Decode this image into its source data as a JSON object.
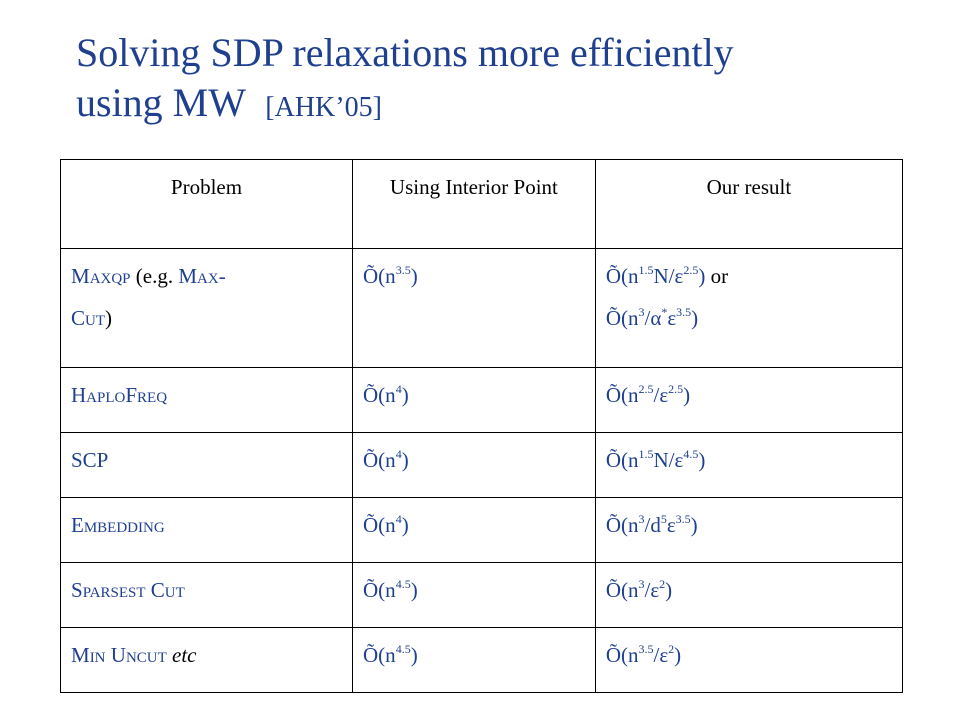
{
  "title": {
    "line1": "Solving SDP relaxations more efficiently",
    "line2": "using MW",
    "citation": "[AHK’05]"
  },
  "colors": {
    "accent": "#1f3f8f",
    "text": "#000000"
  },
  "table": {
    "headers": {
      "problem": "Problem",
      "interior": "Using Interior Point",
      "ours": "Our result"
    },
    "rows": [
      {
        "problem_html": "M<span class=\"sc\">axqp</span> <span class=\"black\">(e.g.</span> M<span class=\"sc\">ax-</span><br>C<span class=\"sc\">ut</span><span class=\"black\">)</span>",
        "interior_html": "Õ(n<sup>3.5</sup>)",
        "ours_html": "Õ(n<sup>1.5</sup>N/ε<sup>2.5</sup>) <span class=\"black\">or</span><br>Õ(n<sup>3</sup>/α<sup>*</sup>ε<sup>3.5</sup>)"
      },
      {
        "problem_html": "H<span class=\"sc\">aplo</span>F<span class=\"sc\">req</span>",
        "interior_html": "Õ(n<sup>4</sup>)",
        "ours_html": "Õ(n<sup>2.5</sup>/ε<sup>2.5</sup>)"
      },
      {
        "problem_html": "SCP",
        "interior_html": "Õ(n<sup>4</sup>)",
        "ours_html": "Õ(n<sup>1.5</sup>N/ε<sup>4.5</sup>)"
      },
      {
        "problem_html": "E<span class=\"sc\">mbedding</span>",
        "interior_html": "Õ(n<sup>4</sup>)",
        "ours_html": "Õ(n<sup>3</sup>/d<sup>5</sup>ε<sup>3.5</sup>)"
      },
      {
        "problem_html": "S<span class=\"sc\">parsest</span> C<span class=\"sc\">ut</span>",
        "interior_html": "Õ(n<sup>4.5</sup>)",
        "ours_html": "Õ(n<sup>3</sup>/ε<sup>2</sup>)"
      },
      {
        "problem_html": "M<span class=\"sc\">in</span> U<span class=\"sc\">ncut</span> <span class=\"black it\">etc</span>",
        "interior_html": "Õ(n<sup>4.5</sup>)",
        "ours_html": "Õ(n<sup>3.5</sup>/ε<sup>2</sup>)"
      }
    ]
  }
}
